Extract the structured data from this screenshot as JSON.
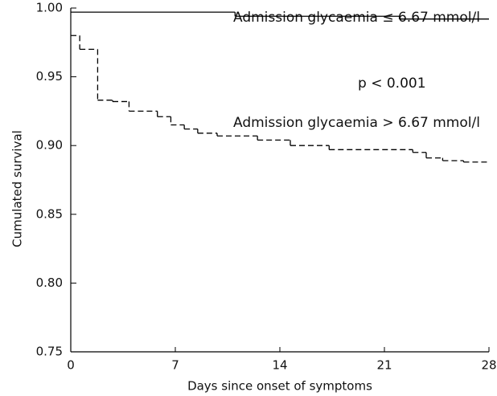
{
  "chart_data": {
    "type": "step",
    "x_label": "Days since onset of symptoms",
    "y_label": "Cumulated survival",
    "annotations": [
      "Admission glycaemia ≤ 6.67 mmol/l",
      "p < 0.001",
      "Admission glycaemia > 6.67 mmol/l"
    ],
    "xlim": [
      0,
      28
    ],
    "xticks": [
      0,
      7,
      14,
      21,
      28
    ],
    "ylim": [
      0.75,
      1
    ],
    "yticks": [
      {
        "value": 1,
        "label": "1.00"
      },
      0.95,
      {
        "value": 0.9,
        "label": "0.90"
      },
      0.85,
      {
        "value": 0.8,
        "label": "0.80"
      },
      0.75
    ],
    "grid": false,
    "series": [
      {
        "color": "#000000",
        "dashed": false,
        "x": [
          0,
          11,
          22
        ],
        "values": [
          0.997,
          0.994,
          0.992
        ]
      },
      {
        "color": "#000000",
        "dashed": true,
        "x": [
          0,
          0.6,
          1.8,
          2.8,
          3.9,
          5.8,
          6.7,
          7.6,
          8.5,
          9.8,
          12.5,
          14.7,
          17.3,
          22.9,
          23.8,
          24.9,
          26.3
        ],
        "values": [
          0.98,
          0.97,
          0.933,
          0.932,
          0.925,
          0.921,
          0.915,
          0.912,
          0.909,
          0.907,
          0.904,
          0.9,
          0.897,
          0.895,
          0.891,
          0.889,
          0.888
        ]
      }
    ]
  }
}
